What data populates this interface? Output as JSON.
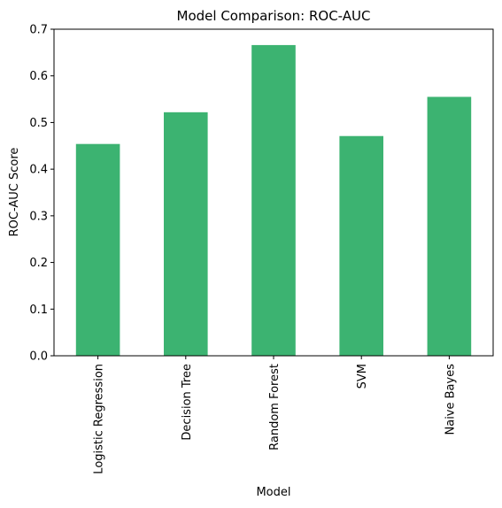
{
  "chart_data": {
    "type": "bar",
    "title": "Model Comparison: ROC-AUC",
    "xlabel": "Model",
    "ylabel": "ROC-AUC Score",
    "categories": [
      "Logistic Regression",
      "Decision Tree",
      "Random Forest",
      "SVM",
      "Naive Bayes"
    ],
    "values": [
      0.454,
      0.522,
      0.666,
      0.471,
      0.555
    ],
    "ylim": [
      0,
      0.7
    ],
    "yticks": [
      "0.0",
      "0.1",
      "0.2",
      "0.3",
      "0.4",
      "0.5",
      "0.6",
      "0.7"
    ],
    "grid": false,
    "bar_color": "#3cb371"
  }
}
